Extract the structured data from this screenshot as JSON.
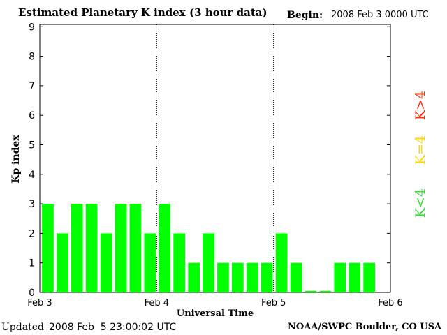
{
  "header": {
    "title": "Estimated Planetary K index (3 hour data)",
    "begin_label": "Begin:",
    "begin_value": "2008 Feb 3 0000 UTC"
  },
  "footer": {
    "updated_label": "Updated",
    "updated_value": "2008 Feb  5 23:00:02 UTC",
    "source": "NOAA/SWPC Boulder, CO USA"
  },
  "legend": {
    "high": {
      "label": "K>4",
      "color": "#ff2a00"
    },
    "equal": {
      "label": "K=4",
      "color": "#ffd700"
    },
    "low": {
      "label": "K<4",
      "color": "#33dd33"
    }
  },
  "chart_data": {
    "type": "bar",
    "ylabel": "Kp index",
    "xlabel": "Universal Time",
    "ylim": [
      0,
      9
    ],
    "yticks": [
      "0",
      "1",
      "2",
      "3",
      "4",
      "5",
      "6",
      "7",
      "8",
      "9"
    ],
    "xticks": [
      "Feb 3",
      "Feb 4",
      "Feb 5",
      "Feb 6"
    ],
    "day_dividers": [
      "Feb 4",
      "Feb 5"
    ],
    "bars_per_day": 8,
    "bar_color": "#00ff00",
    "values": [
      3,
      2,
      3,
      3,
      2,
      3,
      3,
      2,
      3,
      2,
      1,
      2,
      1,
      1,
      1,
      1,
      2,
      1,
      0.05,
      0.05,
      1,
      1,
      1
    ]
  }
}
